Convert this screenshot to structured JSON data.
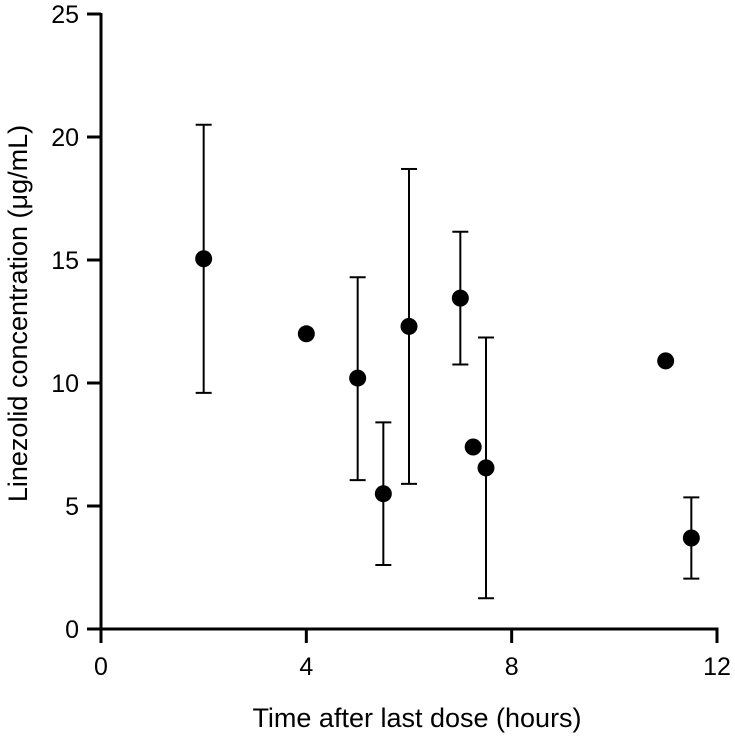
{
  "chart_data": {
    "type": "scatter",
    "title": "",
    "xlabel": "Time after last dose (hours)",
    "ylabel": "Linezolid concentration (μg/mL)",
    "xlim": [
      0,
      12
    ],
    "ylim": [
      0,
      25
    ],
    "x_ticks": [
      0,
      4,
      8,
      12
    ],
    "y_ticks": [
      0,
      5,
      10,
      15,
      20,
      25
    ],
    "x_tick_labels": [
      "0",
      "4",
      "8",
      "12"
    ],
    "y_tick_labels": [
      "0",
      "5",
      "10",
      "15",
      "20",
      "25"
    ],
    "grid": false,
    "legend": "none",
    "marker_color": "#000000",
    "points": [
      {
        "x": 2.0,
        "y": 15.05,
        "err_low": 9.6,
        "err_high": 20.5
      },
      {
        "x": 4.0,
        "y": 12.0
      },
      {
        "x": 5.0,
        "y": 10.2,
        "err_low": 6.05,
        "err_high": 14.3
      },
      {
        "x": 5.5,
        "y": 5.5,
        "err_low": 2.6,
        "err_high": 8.4
      },
      {
        "x": 6.0,
        "y": 12.3,
        "err_low": 5.9,
        "err_high": 18.7
      },
      {
        "x": 7.0,
        "y": 13.45,
        "err_low": 10.75,
        "err_high": 16.15
      },
      {
        "x": 7.25,
        "y": 7.4
      },
      {
        "x": 7.5,
        "y": 6.55,
        "err_low": 1.25,
        "err_high": 11.85
      },
      {
        "x": 11.0,
        "y": 10.9
      },
      {
        "x": 11.5,
        "y": 3.7,
        "err_low": 2.05,
        "err_high": 5.35
      }
    ]
  }
}
